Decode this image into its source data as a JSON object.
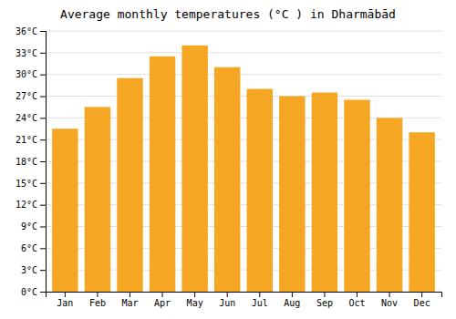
{
  "chart_data": {
    "type": "bar",
    "title": "Average monthly temperatures (°C ) in Dharmābād",
    "categories": [
      "Jan",
      "Feb",
      "Mar",
      "Apr",
      "May",
      "Jun",
      "Jul",
      "Aug",
      "Sep",
      "Oct",
      "Nov",
      "Dec"
    ],
    "values": [
      22.5,
      25.5,
      29.5,
      32.5,
      34.0,
      31.0,
      28.0,
      27.0,
      27.5,
      26.5,
      24.0,
      22.0
    ],
    "color": "#F5A623",
    "ylim": [
      0,
      36
    ],
    "yticks": [
      {
        "value": 0,
        "label": "0°C"
      },
      {
        "value": 3,
        "label": "3°C"
      },
      {
        "value": 6,
        "label": "6°C"
      },
      {
        "value": 9,
        "label": "9°C"
      },
      {
        "value": 12,
        "label": "12°C"
      },
      {
        "value": 15,
        "label": "15°C"
      },
      {
        "value": 18,
        "label": "18°C"
      },
      {
        "value": 21,
        "label": "21°C"
      },
      {
        "value": 24,
        "label": "24°C"
      },
      {
        "value": 27,
        "label": "27°C"
      },
      {
        "value": 30,
        "label": "30°C"
      },
      {
        "value": 33,
        "label": "33°C"
      },
      {
        "value": 36,
        "label": "36°C"
      }
    ],
    "grid": true
  }
}
